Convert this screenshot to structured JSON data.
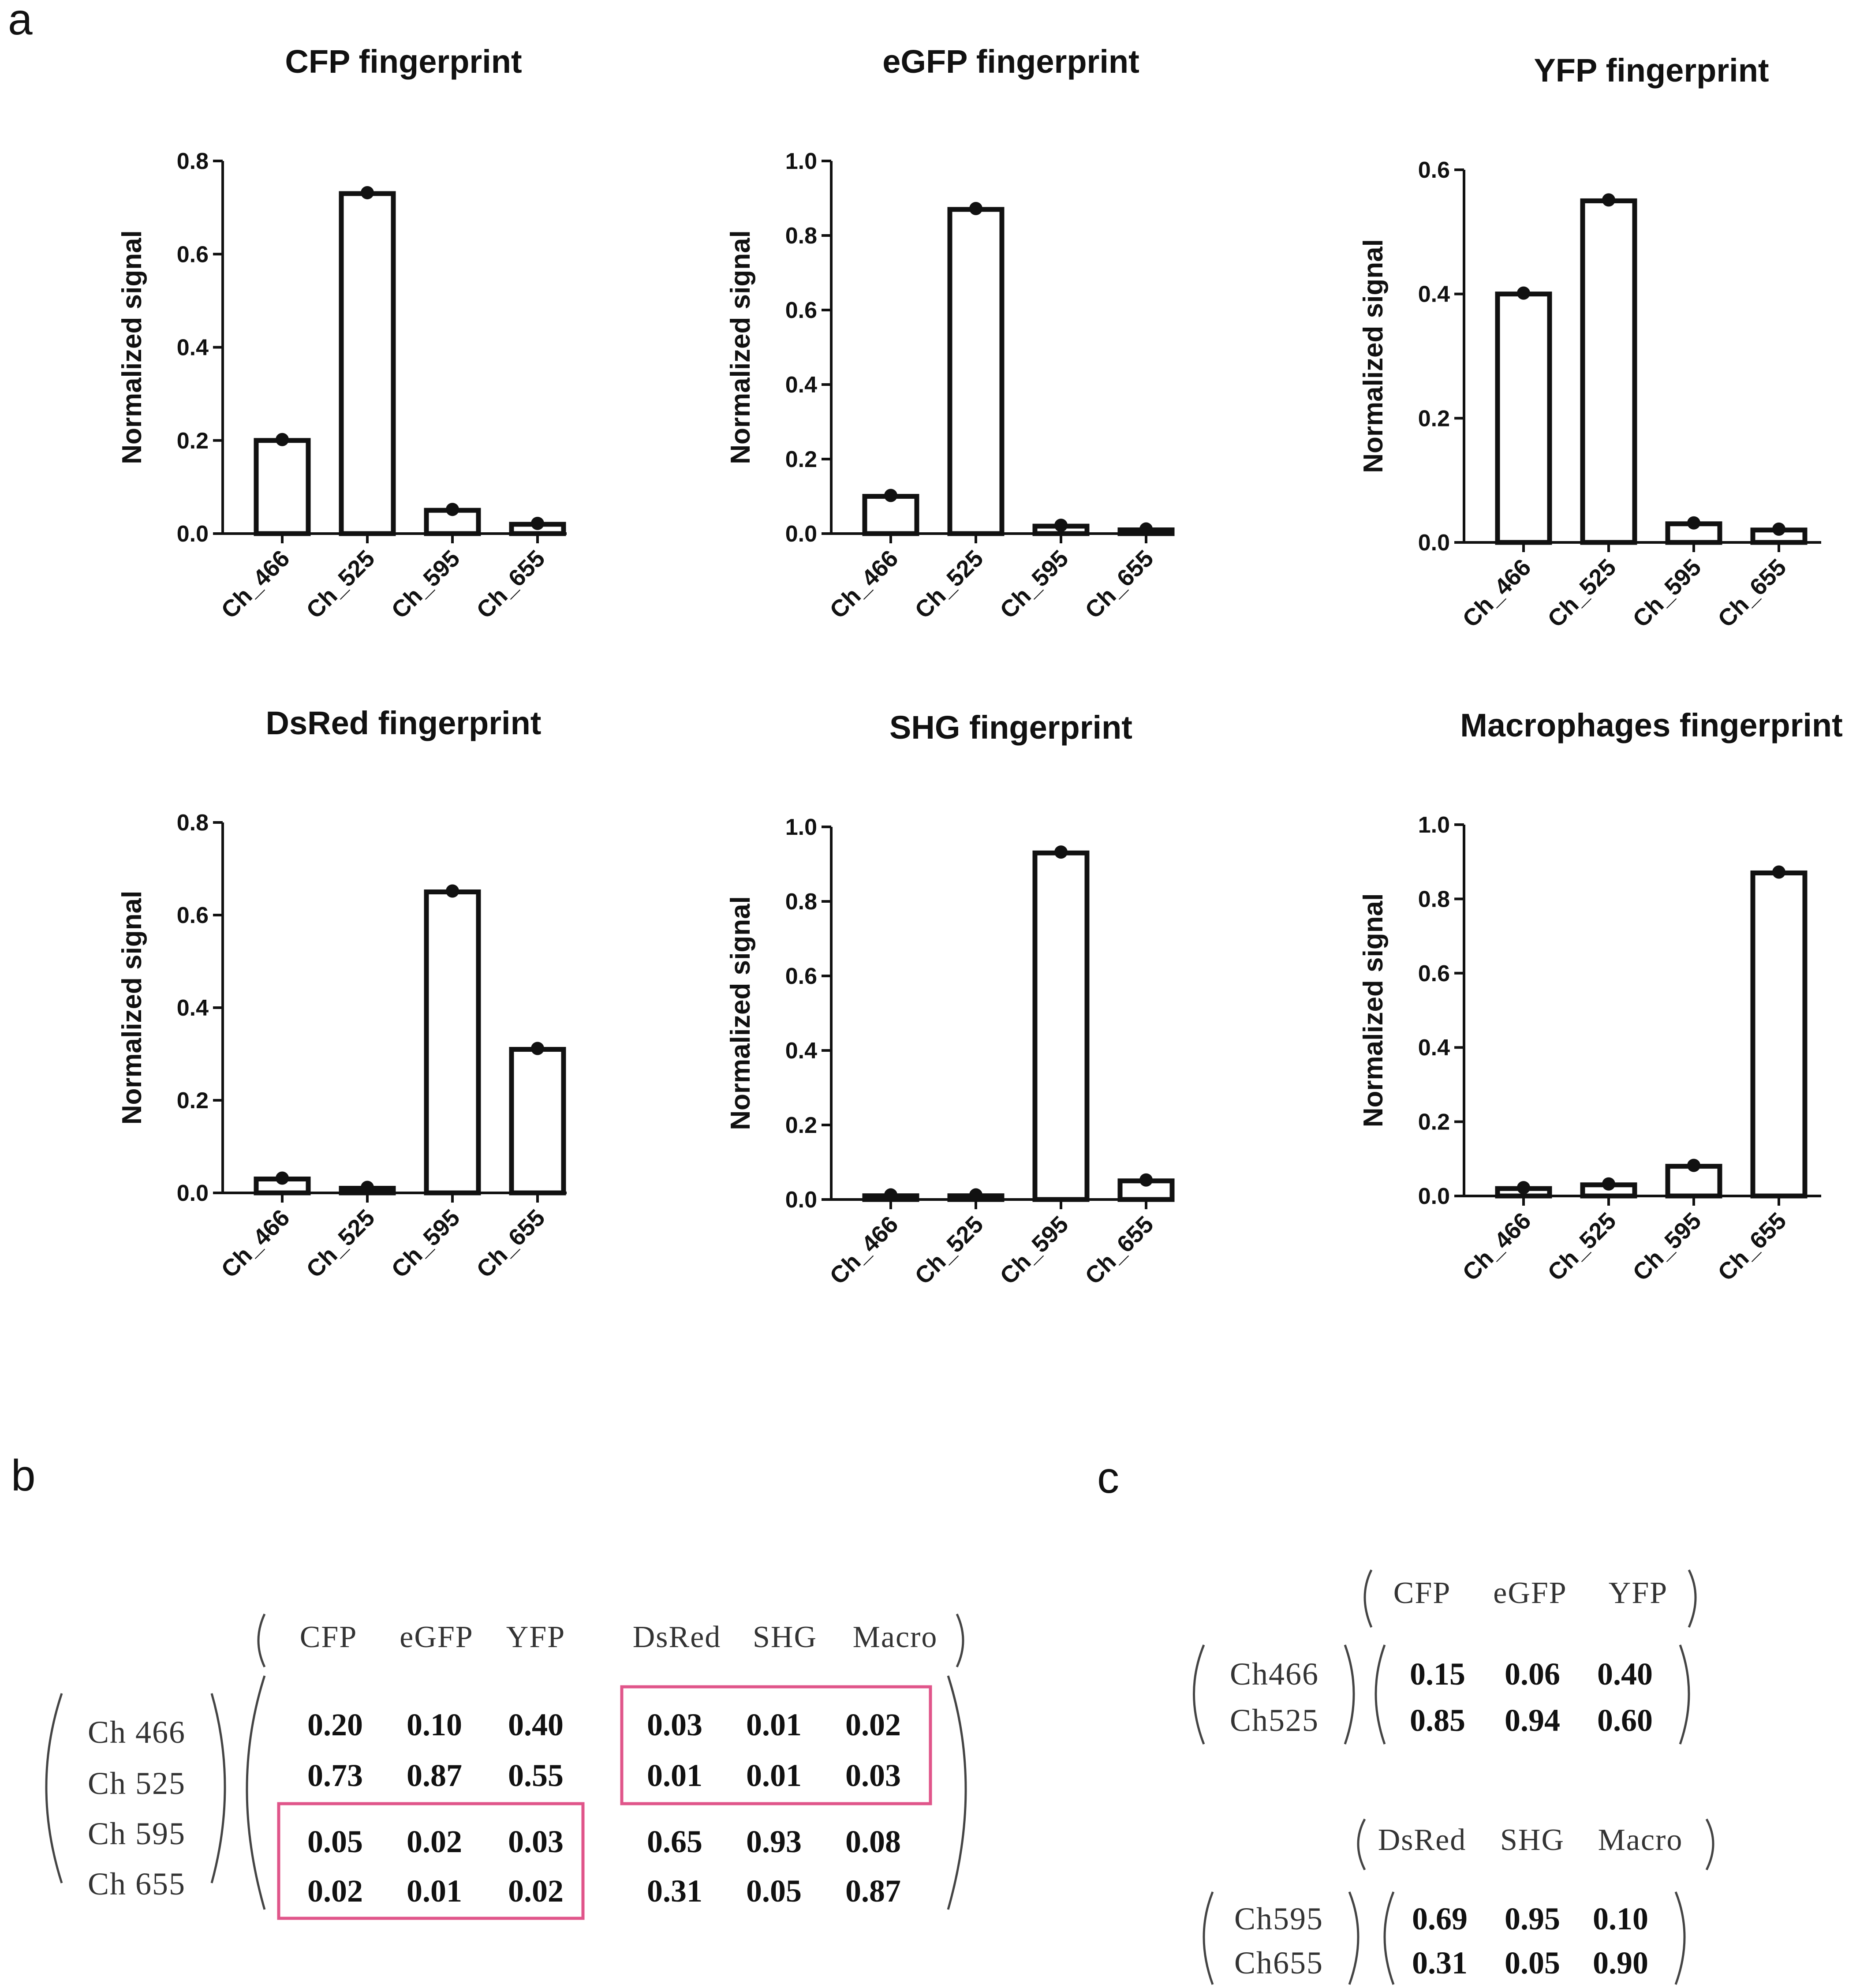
{
  "figure": {
    "panel_labels": [
      "a",
      "b",
      "c"
    ]
  },
  "chart_data": [
    {
      "type": "bar",
      "title": "CFP fingerprint",
      "ylabel": "Normalized signal",
      "categories": [
        "Ch_466",
        "Ch_525",
        "Ch_595",
        "Ch_655"
      ],
      "values": [
        0.2,
        0.73,
        0.05,
        0.02
      ],
      "ylim": [
        0,
        0.8
      ],
      "yticks": [
        "0.0",
        "0.2",
        "0.4",
        "0.6",
        "0.8"
      ]
    },
    {
      "type": "bar",
      "title": "eGFP fingerprint",
      "ylabel": "Normalized signal",
      "categories": [
        "Ch_466",
        "Ch_525",
        "Ch_595",
        "Ch_655"
      ],
      "values": [
        0.1,
        0.87,
        0.02,
        0.01
      ],
      "ylim": [
        0,
        1.0
      ],
      "yticks": [
        "0.0",
        "0.2",
        "0.4",
        "0.6",
        "0.8",
        "1.0"
      ]
    },
    {
      "type": "bar",
      "title": "YFP fingerprint",
      "ylabel": "Normalized signal",
      "categories": [
        "Ch_466",
        "Ch_525",
        "Ch_595",
        "Ch_655"
      ],
      "values": [
        0.4,
        0.55,
        0.03,
        0.02
      ],
      "ylim": [
        0,
        0.6
      ],
      "yticks": [
        "0.0",
        "0.2",
        "0.4",
        "0.6"
      ]
    },
    {
      "type": "bar",
      "title": "DsRed fingerprint",
      "ylabel": "Normalized signal",
      "categories": [
        "Ch_466",
        "Ch_525",
        "Ch_595",
        "Ch_655"
      ],
      "values": [
        0.03,
        0.01,
        0.65,
        0.31
      ],
      "ylim": [
        0,
        0.8
      ],
      "yticks": [
        "0.0",
        "0.2",
        "0.4",
        "0.6",
        "0.8"
      ]
    },
    {
      "type": "bar",
      "title": "SHG fingerprint",
      "ylabel": "Normalized signal",
      "categories": [
        "Ch_466",
        "Ch_525",
        "Ch_595",
        "Ch_655"
      ],
      "values": [
        0.01,
        0.01,
        0.93,
        0.05
      ],
      "ylim": [
        0,
        1.0
      ],
      "yticks": [
        "0.0",
        "0.2",
        "0.4",
        "0.6",
        "0.8",
        "1.0"
      ]
    },
    {
      "type": "bar",
      "title": "Macrophages fingerprint",
      "ylabel": "Normalized signal",
      "categories": [
        "Ch_466",
        "Ch_525",
        "Ch_595",
        "Ch_655"
      ],
      "values": [
        0.02,
        0.03,
        0.08,
        0.87
      ],
      "ylim": [
        0,
        1.0
      ],
      "yticks": [
        "0.0",
        "0.2",
        "0.4",
        "0.6",
        "0.8",
        "1.0"
      ]
    }
  ],
  "matrix_b": {
    "columns": [
      "CFP",
      "eGFP",
      "YFP",
      "DsRed",
      "SHG",
      "Macro"
    ],
    "rows": [
      "Ch 466",
      "Ch 525",
      "Ch 595",
      "Ch 655"
    ],
    "values": [
      [
        "0.20",
        "0.10",
        "0.40",
        "0.03",
        "0.01",
        "0.02"
      ],
      [
        "0.73",
        "0.87",
        "0.55",
        "0.01",
        "0.01",
        "0.03"
      ],
      [
        "0.05",
        "0.02",
        "0.03",
        "0.65",
        "0.93",
        "0.08"
      ],
      [
        "0.02",
        "0.01",
        "0.02",
        "0.31",
        "0.05",
        "0.87"
      ]
    ],
    "highlight_color": "#e0558a"
  },
  "matrix_c": {
    "top": {
      "columns": [
        "CFP",
        "eGFP",
        "YFP"
      ],
      "rows": [
        "Ch466",
        "Ch525"
      ],
      "values": [
        [
          "0.15",
          "0.06",
          "0.40"
        ],
        [
          "0.85",
          "0.94",
          "0.60"
        ]
      ]
    },
    "bottom": {
      "columns": [
        "DsRed",
        "SHG",
        "Macro"
      ],
      "rows": [
        "Ch595",
        "Ch655"
      ],
      "values": [
        [
          "0.69",
          "0.95",
          "0.10"
        ],
        [
          "0.31",
          "0.05",
          "0.90"
        ]
      ]
    }
  }
}
